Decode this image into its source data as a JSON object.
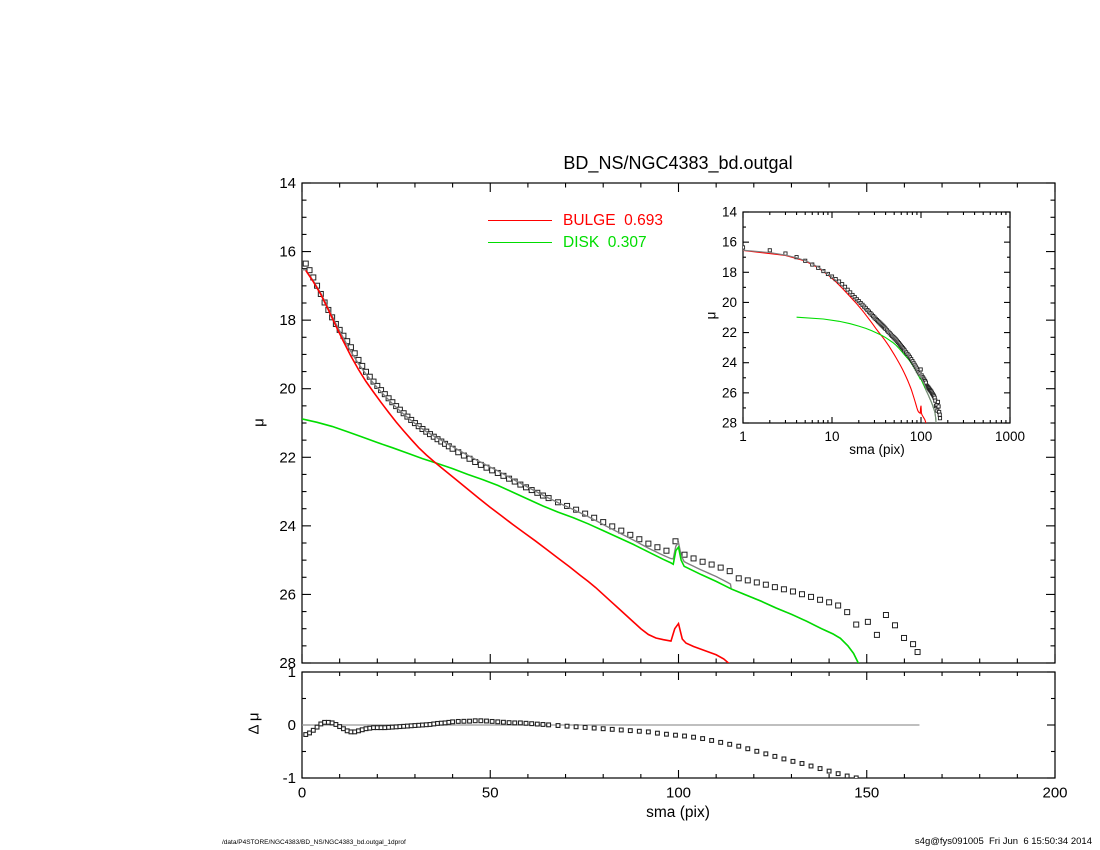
{
  "page": {
    "title": "BD_NS/NGC4383_bd.outgal",
    "footer_left": "/data/P4STORE/NGC4383/BD_NS/NGC4383_bd.outgal_1dprof",
    "footer_right": "s4g@fys091005  Fri Jun  6 15:50:34 2014"
  },
  "chart_data": {
    "type": "line",
    "title": "BD_NS/NGC4383_bd.outgal",
    "panels": {
      "main": {
        "xlabel": "sma (pix)",
        "ylabel": "μ",
        "xlim": [
          0,
          200
        ],
        "ylim": [
          28,
          14
        ],
        "x_major": [
          0,
          50,
          100,
          150,
          200
        ],
        "x_minor_step": 10,
        "y_major": [
          14,
          16,
          18,
          20,
          22,
          24,
          26,
          28
        ],
        "y_minor_step": 0.5
      },
      "inset": {
        "xlabel": "sma (pix)",
        "ylabel": "μ",
        "xscale": "log",
        "xlim": [
          1,
          1000
        ],
        "ylim": [
          28,
          14
        ],
        "x_major": [
          1,
          10,
          100,
          1000
        ],
        "y_major": [
          14,
          16,
          18,
          20,
          22,
          24,
          26,
          28
        ],
        "y_minor_step": 1
      },
      "residual": {
        "ylabel": "Δ μ",
        "xlim": [
          0,
          200
        ],
        "ylim": [
          -1,
          1
        ],
        "x_major": [
          0,
          50,
          100,
          150,
          200
        ],
        "x_minor_step": 10,
        "y_major": [
          1,
          0,
          -1
        ],
        "y_minor_step": 0.5,
        "zero_line_x_end": 164,
        "zero_line_color": "#999999"
      }
    },
    "series": {
      "bulge": {
        "legend_label": "BULGE  0.693",
        "fraction": 0.693,
        "color": "#ff0000",
        "points": [
          [
            1,
            16.55
          ],
          [
            3,
            16.88
          ],
          [
            5,
            17.25
          ],
          [
            7,
            17.7
          ],
          [
            9,
            18.17
          ],
          [
            11,
            18.62
          ],
          [
            13,
            19.05
          ],
          [
            15,
            19.44
          ],
          [
            17,
            19.79
          ],
          [
            19,
            20.1
          ],
          [
            21,
            20.4
          ],
          [
            23,
            20.69
          ],
          [
            25,
            20.97
          ],
          [
            27,
            21.23
          ],
          [
            29,
            21.48
          ],
          [
            31,
            21.72
          ],
          [
            33,
            21.93
          ],
          [
            35,
            22.12
          ],
          [
            37,
            22.3
          ],
          [
            39,
            22.48
          ],
          [
            41,
            22.66
          ],
          [
            44,
            22.93
          ],
          [
            47,
            23.2
          ],
          [
            50,
            23.46
          ],
          [
            53,
            23.71
          ],
          [
            56,
            23.96
          ],
          [
            59,
            24.2
          ],
          [
            62,
            24.44
          ],
          [
            65,
            24.69
          ],
          [
            68,
            24.94
          ],
          [
            71,
            25.19
          ],
          [
            74,
            25.45
          ],
          [
            76,
            25.62
          ],
          [
            78,
            25.8
          ],
          [
            80,
            26.0
          ],
          [
            82,
            26.2
          ],
          [
            84,
            26.4
          ],
          [
            86,
            26.6
          ],
          [
            88,
            26.8
          ],
          [
            90,
            27.0
          ],
          [
            92,
            27.17
          ],
          [
            94,
            27.27
          ],
          [
            96,
            27.32
          ],
          [
            98,
            27.36
          ],
          [
            99,
            27.0
          ],
          [
            100,
            26.85
          ],
          [
            101,
            27.3
          ],
          [
            102,
            27.42
          ],
          [
            104,
            27.52
          ],
          [
            106,
            27.6
          ],
          [
            108,
            27.68
          ],
          [
            110,
            27.76
          ],
          [
            112,
            27.88
          ],
          [
            113.8,
            28.05
          ]
        ]
      },
      "disk": {
        "legend_label": "DISK  0.307",
        "fraction": 0.307,
        "color": "#00dd00",
        "points": [
          [
            0,
            20.88
          ],
          [
            4,
            20.98
          ],
          [
            8,
            21.1
          ],
          [
            12,
            21.25
          ],
          [
            16,
            21.41
          ],
          [
            20,
            21.57
          ],
          [
            24,
            21.72
          ],
          [
            28,
            21.88
          ],
          [
            32,
            22.04
          ],
          [
            36,
            22.18
          ],
          [
            40,
            22.33
          ],
          [
            44,
            22.5
          ],
          [
            48,
            22.65
          ],
          [
            52,
            22.82
          ],
          [
            56,
            23.02
          ],
          [
            60,
            23.22
          ],
          [
            64,
            23.42
          ],
          [
            68,
            23.6
          ],
          [
            72,
            23.76
          ],
          [
            76,
            23.94
          ],
          [
            80,
            24.14
          ],
          [
            84,
            24.34
          ],
          [
            88,
            24.54
          ],
          [
            92,
            24.76
          ],
          [
            96,
            24.98
          ],
          [
            98,
            25.08
          ],
          [
            98.6,
            25.12
          ],
          [
            99.3,
            24.72
          ],
          [
            100,
            24.62
          ],
          [
            100.7,
            25.0
          ],
          [
            101.5,
            25.18
          ],
          [
            103,
            25.26
          ],
          [
            106,
            25.42
          ],
          [
            110,
            25.62
          ],
          [
            114,
            25.84
          ],
          [
            118,
            26.02
          ],
          [
            122,
            26.2
          ],
          [
            126,
            26.4
          ],
          [
            130,
            26.58
          ],
          [
            134,
            26.78
          ],
          [
            138,
            27.0
          ],
          [
            141,
            27.15
          ],
          [
            143,
            27.28
          ],
          [
            145,
            27.5
          ],
          [
            146.5,
            27.72
          ],
          [
            148.2,
            28.1
          ]
        ]
      },
      "model_total": {
        "color": "#808080",
        "derivation": "flux_sum_of_bulge_and_disk"
      },
      "observed": {
        "marker": "open-square",
        "color": "#222222",
        "derivation": "model_total_plus_residual",
        "sampling": [
          [
            1,
            40,
            1
          ],
          [
            41.5,
            66.1,
            1.5
          ],
          [
            68,
            147.3,
            2.4
          ]
        ],
        "tail_points": [
          [
            150.3,
            26.8
          ],
          [
            152.7,
            27.18
          ],
          [
            155.1,
            26.6
          ],
          [
            157.5,
            26.9
          ],
          [
            159.9,
            27.27
          ],
          [
            162.3,
            27.45
          ],
          [
            163.5,
            27.68
          ]
        ]
      },
      "residual": {
        "marker": "open-square",
        "color": "#222222",
        "points": [
          [
            1,
            -0.18
          ],
          [
            2,
            -0.15
          ],
          [
            3,
            -0.1
          ],
          [
            4,
            -0.04
          ],
          [
            5,
            0.02
          ],
          [
            6,
            0.05
          ],
          [
            7,
            0.05
          ],
          [
            8,
            0.04
          ],
          [
            9,
            0.01
          ],
          [
            10,
            -0.03
          ],
          [
            11,
            -0.07
          ],
          [
            12,
            -0.11
          ],
          [
            13,
            -0.13
          ],
          [
            14,
            -0.13
          ],
          [
            15,
            -0.11
          ],
          [
            16,
            -0.09
          ],
          [
            17,
            -0.07
          ],
          [
            18,
            -0.06
          ],
          [
            19,
            -0.05
          ],
          [
            20,
            -0.05
          ],
          [
            22,
            -0.05
          ],
          [
            24,
            -0.04
          ],
          [
            26,
            -0.03
          ],
          [
            28,
            -0.02
          ],
          [
            30,
            -0.01
          ],
          [
            32,
            0.0
          ],
          [
            34,
            0.01
          ],
          [
            36,
            0.03
          ],
          [
            38,
            0.04
          ],
          [
            40,
            0.06
          ],
          [
            42,
            0.07
          ],
          [
            44,
            0.07
          ],
          [
            46,
            0.08
          ],
          [
            48,
            0.08
          ],
          [
            50,
            0.07
          ],
          [
            52,
            0.06
          ],
          [
            54,
            0.05
          ],
          [
            56,
            0.04
          ],
          [
            58,
            0.04
          ],
          [
            60,
            0.03
          ],
          [
            62,
            0.02
          ],
          [
            64,
            0.01
          ],
          [
            66,
            0.0
          ],
          [
            68,
            -0.01
          ],
          [
            70,
            -0.02
          ],
          [
            72,
            -0.03
          ],
          [
            74,
            -0.04
          ],
          [
            76,
            -0.05
          ],
          [
            78,
            -0.06
          ],
          [
            80,
            -0.07
          ],
          [
            82,
            -0.08
          ],
          [
            84,
            -0.09
          ],
          [
            86,
            -0.1
          ],
          [
            88,
            -0.11
          ],
          [
            90,
            -0.12
          ],
          [
            92,
            -0.13
          ],
          [
            94,
            -0.15
          ],
          [
            96,
            -0.17
          ],
          [
            98,
            -0.18
          ],
          [
            100,
            -0.2
          ],
          [
            102,
            -0.21
          ],
          [
            104,
            -0.23
          ],
          [
            106,
            -0.25
          ],
          [
            108,
            -0.28
          ],
          [
            110,
            -0.31
          ],
          [
            112,
            -0.34
          ],
          [
            114,
            -0.37
          ],
          [
            116,
            -0.4
          ],
          [
            118,
            -0.44
          ],
          [
            120,
            -0.48
          ],
          [
            122,
            -0.52
          ],
          [
            124,
            -0.56
          ],
          [
            126,
            -0.6
          ],
          [
            128,
            -0.64
          ],
          [
            130,
            -0.68
          ],
          [
            132,
            -0.71
          ],
          [
            134,
            -0.75
          ],
          [
            136,
            -0.79
          ],
          [
            138,
            -0.83
          ],
          [
            140,
            -0.87
          ],
          [
            142,
            -0.91
          ],
          [
            144,
            -0.95
          ],
          [
            146,
            -0.98
          ],
          [
            148,
            -1.01
          ]
        ]
      }
    }
  }
}
